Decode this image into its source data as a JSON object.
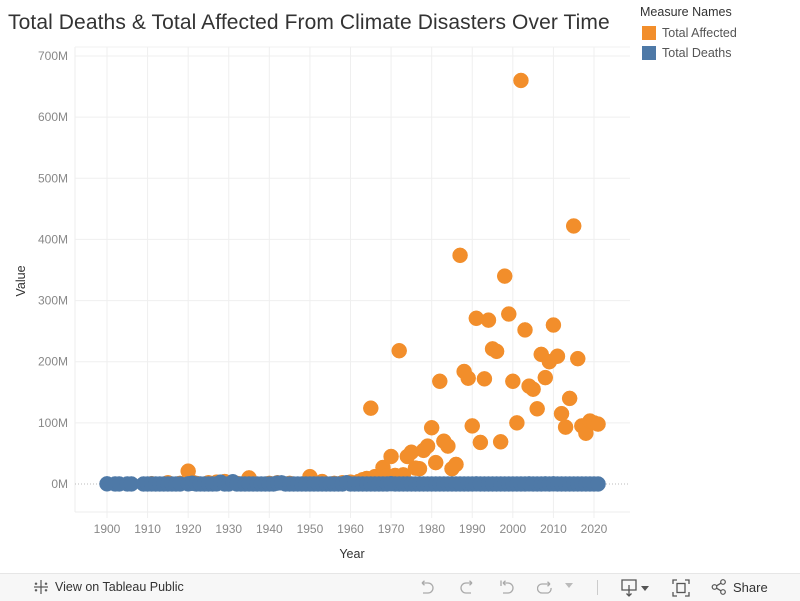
{
  "header": {
    "title": "Total Deaths & Total Affected From Climate Disasters Over Time"
  },
  "legend": {
    "title": "Measure Names",
    "items": [
      {
        "label": "Total Affected",
        "color": "#f28e2b"
      },
      {
        "label": "Total Deaths",
        "color": "#4e79a7"
      }
    ]
  },
  "toolbar": {
    "view_label": "View on Tableau Public",
    "share_label": "Share",
    "icons": [
      "tableau-logo-icon",
      "undo-icon",
      "redo-icon",
      "revert-icon",
      "refresh-icon",
      "download-icon",
      "fullscreen-icon",
      "share-icon"
    ]
  },
  "chart_data": {
    "type": "scatter",
    "title": "Total Deaths & Total Affected From Climate Disasters Over Time",
    "xlabel": "Year",
    "ylabel": "Value",
    "xlim": [
      1892,
      2030
    ],
    "ylim": [
      -50,
      710
    ],
    "y_unit": "M",
    "x_ticks": [
      1900,
      1910,
      1920,
      1930,
      1940,
      1950,
      1960,
      1970,
      1980,
      1990,
      2000,
      2010,
      2020
    ],
    "y_ticks": [
      0,
      100,
      200,
      300,
      400,
      500,
      600,
      700
    ],
    "y_tick_labels": [
      "0M",
      "100M",
      "200M",
      "300M",
      "400M",
      "500M",
      "600M",
      "700M"
    ],
    "grid": true,
    "legend_position": "top-right",
    "series": [
      {
        "name": "Total Affected",
        "color": "#f28e2b",
        "points": [
          [
            1911,
            0.5
          ],
          [
            1915,
            2
          ],
          [
            1918,
            1
          ],
          [
            1920,
            21
          ],
          [
            1921,
            3
          ],
          [
            1922,
            1
          ],
          [
            1925,
            2
          ],
          [
            1927,
            3
          ],
          [
            1929,
            4
          ],
          [
            1931,
            3
          ],
          [
            1932,
            1
          ],
          [
            1935,
            10
          ],
          [
            1940,
            1
          ],
          [
            1942,
            2
          ],
          [
            1945,
            1
          ],
          [
            1950,
            12
          ],
          [
            1953,
            4
          ],
          [
            1956,
            1
          ],
          [
            1958,
            2
          ],
          [
            1960,
            3
          ],
          [
            1962,
            4
          ],
          [
            1963,
            7
          ],
          [
            1964,
            9
          ],
          [
            1965,
            124
          ],
          [
            1966,
            12
          ],
          [
            1967,
            11
          ],
          [
            1968,
            27
          ],
          [
            1969,
            14
          ],
          [
            1970,
            45
          ],
          [
            1971,
            14
          ],
          [
            1972,
            218
          ],
          [
            1973,
            15
          ],
          [
            1974,
            45
          ],
          [
            1975,
            52
          ],
          [
            1976,
            26
          ],
          [
            1977,
            25
          ],
          [
            1978,
            55
          ],
          [
            1979,
            62
          ],
          [
            1980,
            92
          ],
          [
            1981,
            35
          ],
          [
            1982,
            168
          ],
          [
            1983,
            70
          ],
          [
            1984,
            62
          ],
          [
            1985,
            25
          ],
          [
            1986,
            32
          ],
          [
            1987,
            374
          ],
          [
            1988,
            184
          ],
          [
            1989,
            173
          ],
          [
            1990,
            95
          ],
          [
            1991,
            271
          ],
          [
            1992,
            68
          ],
          [
            1993,
            172
          ],
          [
            1994,
            268
          ],
          [
            1995,
            221
          ],
          [
            1996,
            217
          ],
          [
            1997,
            69
          ],
          [
            1998,
            340
          ],
          [
            1999,
            278
          ],
          [
            2000,
            168
          ],
          [
            2001,
            100
          ],
          [
            2002,
            660
          ],
          [
            2003,
            252
          ],
          [
            2004,
            160
          ],
          [
            2005,
            155
          ],
          [
            2006,
            123
          ],
          [
            2007,
            212
          ],
          [
            2008,
            174
          ],
          [
            2009,
            200
          ],
          [
            2010,
            260
          ],
          [
            2011,
            209
          ],
          [
            2012,
            115
          ],
          [
            2013,
            93
          ],
          [
            2014,
            140
          ],
          [
            2015,
            422
          ],
          [
            2016,
            205
          ],
          [
            2017,
            95
          ],
          [
            2018,
            83
          ],
          [
            2019,
            103
          ],
          [
            2020,
            100
          ],
          [
            2021,
            98
          ]
        ]
      },
      {
        "name": "Total Deaths",
        "color": "#4e79a7",
        "points": [
          [
            1900,
            0.3
          ],
          [
            1902,
            0.1
          ],
          [
            1903,
            0.1
          ],
          [
            1905,
            0.1
          ],
          [
            1906,
            0.1
          ],
          [
            1909,
            0.05
          ],
          [
            1910,
            0.05
          ],
          [
            1911,
            0.1
          ],
          [
            1912,
            0.05
          ],
          [
            1913,
            0.05
          ],
          [
            1914,
            0.05
          ],
          [
            1915,
            0.05
          ],
          [
            1916,
            0.05
          ],
          [
            1917,
            0.05
          ],
          [
            1918,
            0.05
          ],
          [
            1920,
            0.2
          ],
          [
            1921,
            1.2
          ],
          [
            1922,
            0.05
          ],
          [
            1923,
            0.1
          ],
          [
            1924,
            0.05
          ],
          [
            1925,
            0.05
          ],
          [
            1926,
            0.05
          ],
          [
            1927,
            0.2
          ],
          [
            1928,
            3
          ],
          [
            1929,
            0.05
          ],
          [
            1930,
            0.05
          ],
          [
            1931,
            3.7
          ],
          [
            1932,
            0.05
          ],
          [
            1933,
            0.05
          ],
          [
            1934,
            0.05
          ],
          [
            1935,
            0.1
          ],
          [
            1936,
            0.05
          ],
          [
            1937,
            0.05
          ],
          [
            1938,
            0.05
          ],
          [
            1939,
            0.05
          ],
          [
            1940,
            0.05
          ],
          [
            1941,
            0.05
          ],
          [
            1942,
            1.5
          ],
          [
            1943,
            1.9
          ],
          [
            1944,
            0.05
          ],
          [
            1945,
            0.05
          ],
          [
            1946,
            0.05
          ],
          [
            1947,
            0.05
          ],
          [
            1948,
            0.05
          ],
          [
            1949,
            0.05
          ],
          [
            1950,
            0.05
          ],
          [
            1951,
            0.05
          ],
          [
            1952,
            0.05
          ],
          [
            1953,
            0.05
          ],
          [
            1954,
            0.05
          ],
          [
            1955,
            0.05
          ],
          [
            1956,
            0.05
          ],
          [
            1957,
            0.05
          ],
          [
            1958,
            0.05
          ],
          [
            1959,
            2
          ],
          [
            1960,
            0.05
          ],
          [
            1961,
            0.05
          ],
          [
            1962,
            0.05
          ],
          [
            1963,
            0.05
          ],
          [
            1964,
            0.05
          ],
          [
            1965,
            0.05
          ],
          [
            1966,
            0.05
          ],
          [
            1967,
            0.05
          ],
          [
            1968,
            0.05
          ],
          [
            1969,
            0.05
          ],
          [
            1970,
            0.5
          ],
          [
            1971,
            0.05
          ],
          [
            1972,
            0.05
          ],
          [
            1973,
            0.05
          ],
          [
            1974,
            0.05
          ],
          [
            1975,
            0.05
          ],
          [
            1976,
            0.05
          ],
          [
            1977,
            0.05
          ],
          [
            1978,
            0.05
          ],
          [
            1979,
            0.05
          ],
          [
            1980,
            0.05
          ],
          [
            1981,
            0.05
          ],
          [
            1982,
            0.05
          ],
          [
            1983,
            0.05
          ],
          [
            1984,
            0.05
          ],
          [
            1985,
            0.05
          ],
          [
            1986,
            0.05
          ],
          [
            1987,
            0.05
          ],
          [
            1988,
            0.05
          ],
          [
            1989,
            0.05
          ],
          [
            1990,
            0.05
          ],
          [
            1991,
            0.2
          ],
          [
            1992,
            0.05
          ],
          [
            1993,
            0.05
          ],
          [
            1994,
            0.05
          ],
          [
            1995,
            0.05
          ],
          [
            1996,
            0.05
          ],
          [
            1997,
            0.05
          ],
          [
            1998,
            0.05
          ],
          [
            1999,
            0.05
          ],
          [
            2000,
            0.05
          ],
          [
            2001,
            0.05
          ],
          [
            2002,
            0.05
          ],
          [
            2003,
            0.05
          ],
          [
            2004,
            0.2
          ],
          [
            2005,
            0.05
          ],
          [
            2006,
            0.05
          ],
          [
            2007,
            0.05
          ],
          [
            2008,
            0.2
          ],
          [
            2009,
            0.05
          ],
          [
            2010,
            0.3
          ],
          [
            2011,
            0.05
          ],
          [
            2012,
            0.05
          ],
          [
            2013,
            0.05
          ],
          [
            2014,
            0.05
          ],
          [
            2015,
            0.05
          ],
          [
            2016,
            0.05
          ],
          [
            2017,
            0.05
          ],
          [
            2018,
            0.05
          ],
          [
            2019,
            0.05
          ],
          [
            2020,
            0.05
          ],
          [
            2021,
            0.05
          ]
        ]
      }
    ]
  }
}
